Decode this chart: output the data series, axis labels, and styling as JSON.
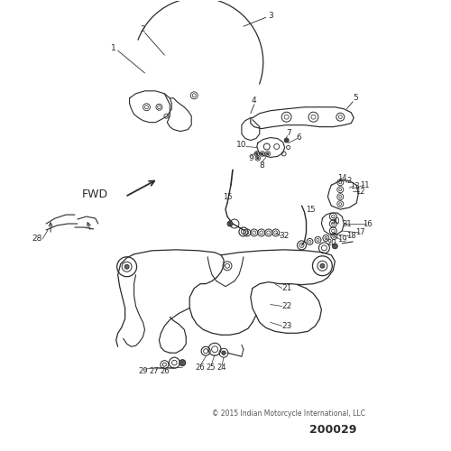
{
  "bg_color": "#ffffff",
  "line_color": "#2a2a2a",
  "label_color": "#2a2a2a",
  "copyright_text": "© 2015 Indian Motorcycle International, LLC",
  "part_number": "200029",
  "fwd_label": "FWD",
  "fig_width": 5.0,
  "fig_height": 5.0,
  "dpi": 100
}
